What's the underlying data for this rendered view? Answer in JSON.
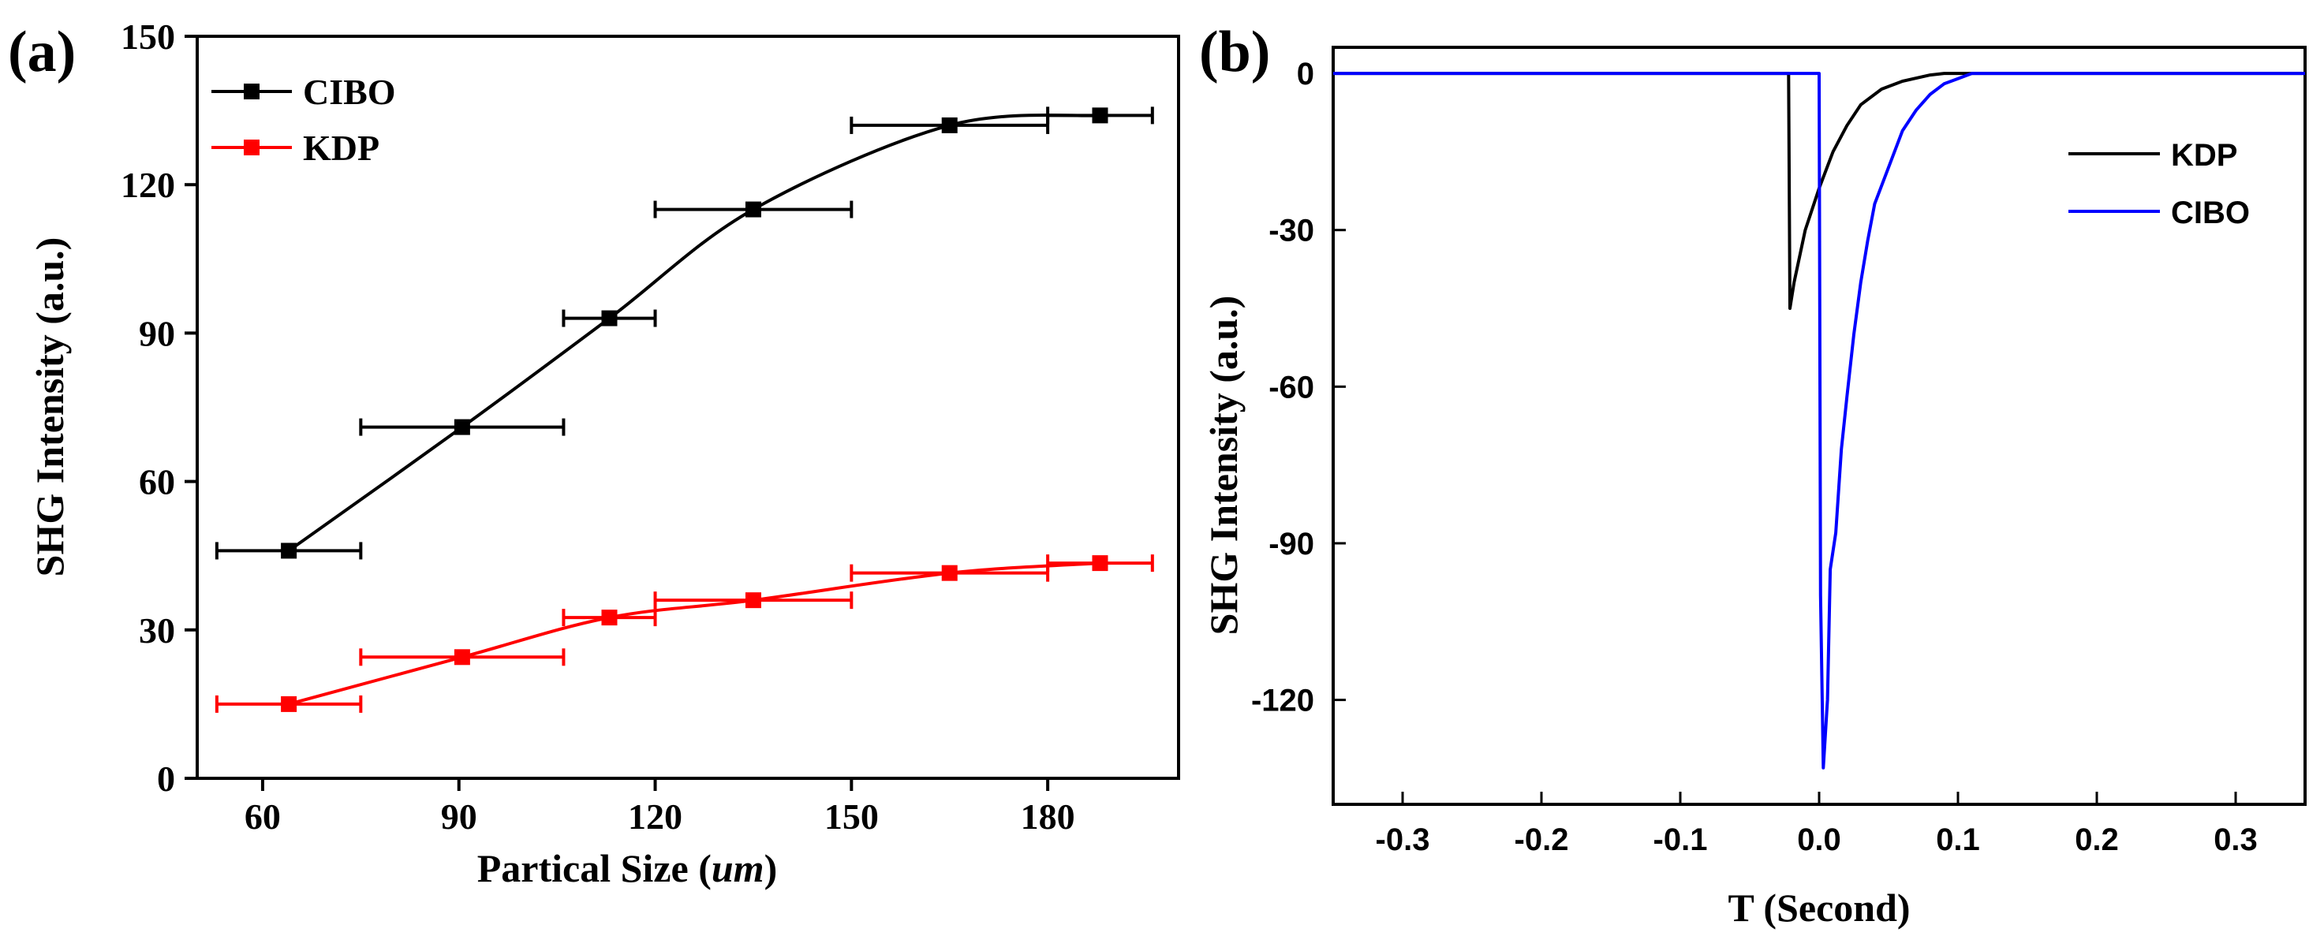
{
  "chart_data": [
    {
      "type": "scatter",
      "panel_label": "(a)",
      "xlabel_prefix": "Partical Size (",
      "xlabel_unit": "um",
      "xlabel_suffix": ")",
      "ylabel": "SHG Intensity (a.u.)",
      "xlim": [
        50,
        200
      ],
      "ylim": [
        0,
        150
      ],
      "xticks": [
        60,
        90,
        120,
        150,
        180
      ],
      "yticks": [
        0,
        30,
        60,
        90,
        120,
        150
      ],
      "legend_position": "top-left",
      "series": [
        {
          "name": "CIBO",
          "color": "#000000",
          "points": [
            {
              "x": 64,
              "y": 46,
              "xmin": 53,
              "xmax": 75
            },
            {
              "x": 90.5,
              "y": 71,
              "xmin": 75,
              "xmax": 106
            },
            {
              "x": 113,
              "y": 93,
              "xmin": 106,
              "xmax": 120
            },
            {
              "x": 135,
              "y": 115,
              "xmin": 120,
              "xmax": 150
            },
            {
              "x": 165,
              "y": 132,
              "xmin": 150,
              "xmax": 180
            },
            {
              "x": 188,
              "y": 134,
              "xmin": 180,
              "xmax": 196
            }
          ]
        },
        {
          "name": "KDP",
          "color": "#ff0000",
          "points": [
            {
              "x": 64,
              "y": 15,
              "xmin": 53,
              "xmax": 75
            },
            {
              "x": 90.5,
              "y": 24.5,
              "xmin": 75,
              "xmax": 106
            },
            {
              "x": 113,
              "y": 32.5,
              "xmin": 106,
              "xmax": 120
            },
            {
              "x": 135,
              "y": 36,
              "xmin": 120,
              "xmax": 150
            },
            {
              "x": 165,
              "y": 41.5,
              "xmin": 150,
              "xmax": 180
            },
            {
              "x": 188,
              "y": 43.5,
              "xmin": 180,
              "xmax": 196
            }
          ]
        }
      ]
    },
    {
      "type": "line",
      "panel_label": "(b)",
      "xlabel": "T (Second)",
      "ylabel": "SHG Intensity (a.u.)",
      "xlim": [
        -0.35,
        0.35
      ],
      "ylim": [
        -140,
        5
      ],
      "xticks": [
        -0.3,
        -0.2,
        -0.1,
        0.0,
        0.1,
        0.2,
        0.3
      ],
      "xtick_labels": [
        "-0.3",
        "-0.2",
        "-0.1",
        "0.0",
        "0.1",
        "0.2",
        "0.3"
      ],
      "yticks": [
        0,
        -30,
        -60,
        -90,
        -120
      ],
      "legend_position": "right",
      "series": [
        {
          "name": "KDP",
          "color": "#000000",
          "points": [
            [
              -0.35,
              0
            ],
            [
              -0.022,
              0
            ],
            [
              -0.021,
              -45
            ],
            [
              -0.018,
              -40
            ],
            [
              -0.01,
              -30
            ],
            [
              0,
              -22
            ],
            [
              0.01,
              -15
            ],
            [
              0.02,
              -10
            ],
            [
              0.03,
              -6
            ],
            [
              0.045,
              -3
            ],
            [
              0.06,
              -1.5
            ],
            [
              0.08,
              -0.3
            ],
            [
              0.09,
              0
            ],
            [
              0.35,
              0
            ]
          ]
        },
        {
          "name": "CIBO",
          "color": "#0000ff",
          "points": [
            [
              -0.35,
              0
            ],
            [
              0.0,
              0
            ],
            [
              0.001,
              -100
            ],
            [
              0.003,
              -133
            ],
            [
              0.006,
              -120
            ],
            [
              0.008,
              -95
            ],
            [
              0.012,
              -88
            ],
            [
              0.016,
              -72
            ],
            [
              0.02,
              -62
            ],
            [
              0.025,
              -50
            ],
            [
              0.03,
              -40
            ],
            [
              0.035,
              -32
            ],
            [
              0.04,
              -25
            ],
            [
              0.05,
              -18
            ],
            [
              0.06,
              -11
            ],
            [
              0.07,
              -7
            ],
            [
              0.08,
              -4
            ],
            [
              0.09,
              -2
            ],
            [
              0.1,
              -1
            ],
            [
              0.11,
              0
            ],
            [
              0.35,
              0
            ]
          ]
        }
      ]
    }
  ]
}
